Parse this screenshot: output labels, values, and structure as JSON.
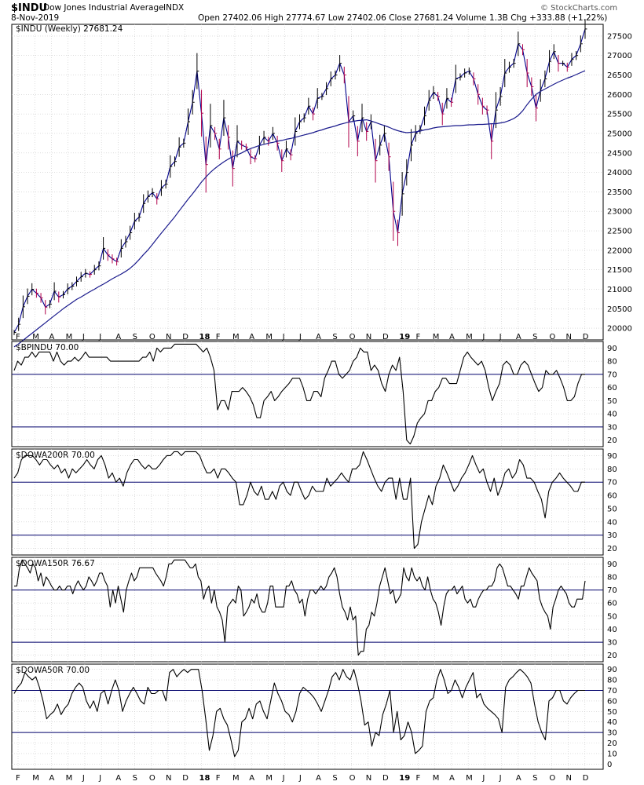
{
  "header": {
    "symbol": "$INDU",
    "name": "Dow Jones Industrial Average",
    "exchange": "INDX",
    "date": "8-Nov-2019",
    "ohlc": "Open 27402.06   High 27774.67   Low 27402.06   Close 27681.24   Volume 1.3B   Chg +333.88 (+1.22%)",
    "watermark": "© StockCharts.com"
  },
  "x_axis_labels": [
    "F",
    "M",
    "A",
    "M",
    "J",
    "J",
    "A",
    "S",
    "O",
    "N",
    "D",
    "18",
    "F",
    "M",
    "A",
    "M",
    "J",
    "J",
    "A",
    "S",
    "O",
    "N",
    "D",
    "19",
    "F",
    "M",
    "A",
    "M",
    "J",
    "J",
    "A",
    "S",
    "O",
    "N",
    "D"
  ],
  "colors": {
    "price_up": "#000000",
    "price_down": "#b0004a",
    "price_line": "#00008b",
    "ma": "#1a1a8c",
    "breadth": "#000000",
    "ref_line": "#00006b",
    "grid": "#c8c8c8"
  },
  "chart_data": [
    {
      "type": "line",
      "label": "$INDU (Weekly) 27681.24",
      "ylim": [
        19700,
        27800
      ],
      "yticks": [
        20000,
        20500,
        21000,
        21500,
        22000,
        22500,
        23000,
        23500,
        24000,
        24500,
        25000,
        25500,
        26000,
        26500,
        27000,
        27500
      ],
      "series": [
        {
          "name": "$INDU",
          "values": [
            19890,
            20100,
            20550,
            20820,
            21000,
            20900,
            20780,
            20540,
            20620,
            20950,
            20800,
            20860,
            21010,
            21080,
            21200,
            21320,
            21410,
            21380,
            21500,
            21600,
            22050,
            21880,
            21780,
            21710,
            22050,
            22220,
            22450,
            22750,
            22850,
            23200,
            23380,
            23480,
            23320,
            23600,
            23700,
            24150,
            24280,
            24650,
            24750,
            25300,
            25800,
            26600,
            25520,
            24200,
            25200,
            25000,
            24600,
            25400,
            24900,
            24100,
            24800,
            24700,
            24650,
            24400,
            24350,
            24700,
            24900,
            24800,
            25000,
            24750,
            24300,
            24600,
            24450,
            25050,
            25300,
            25400,
            25700,
            25500,
            25900,
            25950,
            26150,
            26400,
            26500,
            26800,
            26500,
            25300,
            25450,
            24800,
            25400,
            25050,
            25300,
            24300,
            24700,
            25000,
            24400,
            23000,
            22450,
            23450,
            24000,
            24700,
            25000,
            25100,
            25450,
            25850,
            26050,
            25950,
            25500,
            25900,
            25800,
            26400,
            26450,
            26550,
            26600,
            26400,
            26000,
            25700,
            25600,
            24800,
            25600,
            25950,
            26550,
            26700,
            26800,
            27300,
            27150,
            26550,
            26200,
            25650,
            26100,
            26400,
            26850,
            27100,
            26800,
            26800,
            26700,
            26900,
            27000,
            27300,
            27681
          ]
        },
        {
          "name": "MA",
          "values": [
            19520,
            19600,
            19690,
            19780,
            19870,
            19960,
            20050,
            20140,
            20230,
            20320,
            20410,
            20500,
            20580,
            20660,
            20740,
            20800,
            20870,
            20940,
            21000,
            21070,
            21130,
            21200,
            21270,
            21330,
            21390,
            21460,
            21540,
            21640,
            21760,
            21890,
            22010,
            22150,
            22300,
            22440,
            22580,
            22720,
            22860,
            23010,
            23160,
            23310,
            23450,
            23600,
            23750,
            23880,
            24000,
            24100,
            24190,
            24270,
            24340,
            24400,
            24450,
            24500,
            24560,
            24610,
            24650,
            24690,
            24720,
            24750,
            24770,
            24800,
            24820,
            24850,
            24870,
            24900,
            24930,
            24960,
            24990,
            25020,
            25060,
            25090,
            25130,
            25160,
            25190,
            25230,
            25260,
            25290,
            25310,
            25330,
            25340,
            25350,
            25320,
            25280,
            25240,
            25200,
            25160,
            25110,
            25070,
            25040,
            25020,
            25030,
            25040,
            25060,
            25090,
            25110,
            25140,
            25160,
            25170,
            25180,
            25190,
            25200,
            25200,
            25210,
            25220,
            25220,
            25230,
            25230,
            25240,
            25250,
            25250,
            25270,
            25290,
            25330,
            25380,
            25460,
            25580,
            25740,
            25880,
            26000,
            26080,
            26140,
            26200,
            26260,
            26320,
            26370,
            26420,
            26460,
            26510,
            26560,
            26610
          ]
        }
      ]
    },
    {
      "type": "line",
      "label": "$BPINDU 70.00",
      "ylim": [
        15,
        95
      ],
      "yticks": [
        20,
        30,
        40,
        50,
        60,
        70,
        80,
        90
      ],
      "ref_lines": [
        70,
        30
      ],
      "series": [
        {
          "name": "$BPINDU",
          "values": [
            73,
            80,
            77,
            83,
            83,
            87,
            83,
            87,
            87,
            87,
            87,
            80,
            87,
            80,
            77,
            80,
            80,
            83,
            80,
            83,
            87,
            83,
            83,
            83,
            83,
            83,
            83,
            80,
            80,
            80,
            80,
            80,
            80,
            80,
            80,
            80,
            83,
            83,
            87,
            80,
            90,
            87,
            90,
            90,
            90,
            93,
            93,
            93,
            93,
            93,
            93,
            93,
            90,
            87,
            90,
            83,
            73,
            43,
            50,
            50,
            43,
            57,
            57,
            57,
            60,
            57,
            53,
            47,
            37,
            37,
            50,
            53,
            57,
            50,
            53,
            57,
            60,
            63,
            67,
            67,
            67,
            60,
            50,
            50,
            57,
            57,
            53,
            67,
            73,
            80,
            80,
            70,
            67,
            70,
            73,
            80,
            83,
            90,
            87,
            87,
            73,
            77,
            73,
            63,
            57,
            70,
            77,
            73,
            83,
            57,
            20,
            17,
            23,
            33,
            37,
            40,
            50,
            50,
            57,
            60,
            67,
            67,
            63,
            63,
            63,
            73,
            83,
            87,
            83,
            80,
            77,
            80,
            73,
            60,
            50,
            57,
            63,
            77,
            80,
            77,
            70,
            70,
            77,
            80,
            77,
            70,
            63,
            57,
            60,
            73,
            70,
            70,
            73,
            67,
            60,
            50,
            50,
            53,
            63,
            70,
            70
          ]
        }
      ]
    },
    {
      "type": "line",
      "label": "$DOWA200R 70.00",
      "ylim": [
        15,
        95
      ],
      "yticks": [
        20,
        30,
        40,
        50,
        60,
        70,
        80,
        90
      ],
      "ref_lines": [
        70,
        30
      ],
      "series": [
        {
          "name": "$DOWA200R",
          "values": [
            73,
            77,
            87,
            90,
            90,
            90,
            87,
            83,
            87,
            87,
            83,
            80,
            83,
            77,
            80,
            73,
            80,
            77,
            80,
            83,
            87,
            83,
            80,
            87,
            90,
            83,
            73,
            77,
            70,
            73,
            67,
            77,
            83,
            87,
            87,
            83,
            80,
            83,
            80,
            80,
            83,
            87,
            90,
            90,
            93,
            93,
            90,
            93,
            93,
            93,
            93,
            90,
            83,
            77,
            77,
            80,
            73,
            80,
            80,
            77,
            73,
            70,
            53,
            53,
            60,
            70,
            63,
            60,
            67,
            57,
            57,
            63,
            57,
            67,
            70,
            63,
            60,
            70,
            70,
            63,
            57,
            60,
            67,
            63,
            63,
            63,
            73,
            67,
            70,
            73,
            77,
            73,
            70,
            80,
            80,
            83,
            93,
            87,
            80,
            73,
            67,
            63,
            70,
            73,
            73,
            57,
            73,
            57,
            57,
            73,
            20,
            23,
            40,
            50,
            60,
            53,
            67,
            73,
            83,
            77,
            70,
            63,
            67,
            73,
            77,
            83,
            90,
            83,
            77,
            80,
            70,
            63,
            73,
            60,
            67,
            77,
            80,
            73,
            77,
            87,
            83,
            73,
            73,
            70,
            63,
            57,
            43,
            63,
            70,
            73,
            77,
            73,
            70,
            67,
            63,
            63,
            70,
            70
          ]
        }
      ]
    },
    {
      "type": "line",
      "label": "$DOWA150R 76.67",
      "ylim": [
        15,
        95
      ],
      "yticks": [
        20,
        30,
        40,
        50,
        60,
        70,
        80,
        90
      ],
      "ref_lines": [
        70,
        30
      ],
      "series": [
        {
          "name": "$DOWA150R",
          "values": [
            73,
            73,
            87,
            93,
            90,
            87,
            83,
            90,
            87,
            77,
            83,
            73,
            80,
            77,
            73,
            70,
            70,
            73,
            70,
            70,
            73,
            73,
            67,
            73,
            77,
            73,
            70,
            73,
            80,
            77,
            73,
            77,
            83,
            83,
            77,
            73,
            57,
            70,
            60,
            73,
            63,
            53,
            70,
            77,
            83,
            77,
            80,
            87,
            87,
            87,
            87,
            87,
            87,
            83,
            80,
            77,
            73,
            80,
            90,
            90,
            93,
            93,
            93,
            93,
            93,
            90,
            87,
            87,
            90,
            80,
            77,
            63,
            70,
            73,
            60,
            70,
            57,
            53,
            47,
            30,
            57,
            60,
            63,
            60,
            73,
            70,
            50,
            53,
            57,
            63,
            60,
            67,
            57,
            53,
            53,
            60,
            73,
            73,
            57,
            57,
            57,
            57,
            73,
            73,
            77,
            70,
            67,
            60,
            63,
            50,
            63,
            70,
            70,
            67,
            70,
            73,
            70,
            73,
            80,
            83,
            87,
            80,
            67,
            57,
            53,
            47,
            57,
            47,
            50,
            20,
            23,
            23,
            40,
            43,
            53,
            50,
            60,
            73,
            80,
            87,
            77,
            67,
            70,
            60,
            63,
            67,
            87,
            80,
            77,
            87,
            80,
            77,
            80,
            73,
            70,
            80,
            70,
            63,
            60,
            53,
            43,
            57,
            67,
            70,
            70,
            73,
            67,
            70,
            73,
            63,
            60,
            63,
            57,
            57,
            63,
            67,
            70,
            70,
            73,
            73,
            77,
            87,
            90,
            87,
            80,
            73,
            73,
            70,
            67,
            63,
            73,
            73,
            80,
            87,
            83,
            80,
            77,
            63,
            57,
            53,
            50,
            40,
            57,
            63,
            70,
            73,
            70,
            67,
            60,
            57,
            57,
            63,
            63,
            63,
            77
          ]
        }
      ]
    },
    {
      "type": "line",
      "label": "$DOWA50R 70.00",
      "ylim": [
        -5,
        95
      ],
      "yticks": [
        0,
        10,
        20,
        30,
        40,
        50,
        60,
        70,
        80,
        90
      ],
      "ref_lines": [
        70,
        30
      ],
      "series": [
        {
          "name": "$DOWA50R",
          "values": [
            67,
            73,
            77,
            87,
            83,
            80,
            83,
            73,
            60,
            43,
            47,
            50,
            57,
            47,
            53,
            57,
            67,
            73,
            77,
            73,
            60,
            53,
            60,
            50,
            67,
            70,
            57,
            70,
            80,
            70,
            50,
            60,
            67,
            73,
            67,
            60,
            57,
            73,
            67,
            67,
            70,
            70,
            60,
            87,
            90,
            83,
            87,
            90,
            87,
            90,
            90,
            90,
            70,
            43,
            13,
            27,
            50,
            53,
            43,
            37,
            23,
            7,
            13,
            40,
            43,
            53,
            43,
            57,
            60,
            50,
            43,
            60,
            77,
            67,
            60,
            50,
            47,
            40,
            50,
            67,
            73,
            70,
            67,
            63,
            57,
            50,
            60,
            70,
            83,
            87,
            80,
            90,
            83,
            80,
            90,
            77,
            60,
            37,
            40,
            17,
            30,
            27,
            47,
            57,
            70,
            30,
            50,
            23,
            27,
            40,
            30,
            10,
            13,
            17,
            50,
            60,
            63,
            80,
            90,
            80,
            67,
            70,
            80,
            73,
            63,
            73,
            80,
            87,
            63,
            67,
            57,
            53,
            50,
            47,
            43,
            30,
            73,
            80,
            83,
            87,
            90,
            87,
            83,
            77,
            57,
            40,
            30,
            23,
            60,
            63,
            70,
            70,
            60,
            57,
            63,
            67,
            70,
            70,
            70
          ]
        }
      ]
    }
  ]
}
